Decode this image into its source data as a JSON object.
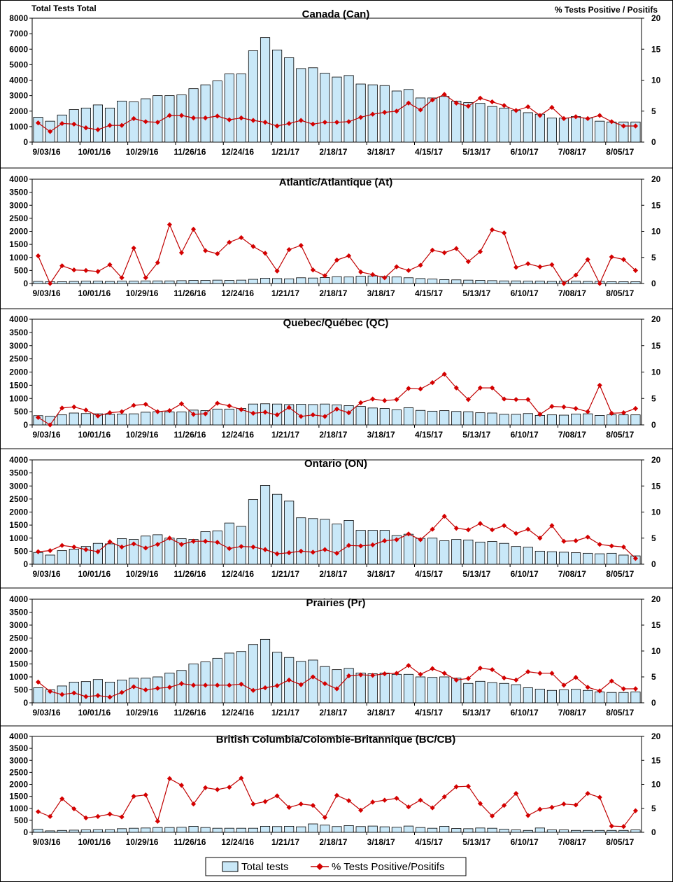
{
  "header": {
    "left_axis_title": "Total Tests Total",
    "right_axis_title": "% Tests Positive / Positifs"
  },
  "legend": {
    "bars_label": "Total tests",
    "line_label": "% Tests Positive/Positifs"
  },
  "colors": {
    "bar_fill": "#c9e8f8",
    "bar_stroke": "#000000",
    "line": "#c00000",
    "marker": "#d40000"
  },
  "chart_data": [
    {
      "type": "bar",
      "title": "Canada (Can)",
      "x_tick_labels": [
        "9/03/16",
        "10/01/16",
        "10/29/16",
        "11/26/16",
        "12/24/16",
        "1/21/17",
        "2/18/17",
        "3/18/17",
        "4/15/17",
        "5/13/17",
        "6/10/17",
        "7/08/17",
        "8/05/17"
      ],
      "left_ylim": [
        0,
        8000
      ],
      "left_yticks": [
        "0",
        "1000",
        "2000",
        "3000",
        "4000",
        "5000",
        "6000",
        "7000",
        "8000"
      ],
      "right_ylim": [
        0,
        20
      ],
      "right_yticks": [
        "0",
        "5",
        "10",
        "15",
        "20"
      ],
      "series": [
        {
          "name": "Total tests",
          "axis": "left",
          "values": [
            1600,
            1350,
            1750,
            2100,
            2200,
            2400,
            2200,
            2650,
            2600,
            2800,
            3000,
            3000,
            3050,
            3450,
            3700,
            3950,
            4400,
            4400,
            5900,
            6750,
            5950,
            5450,
            4750,
            4800,
            4450,
            4200,
            4300,
            3750,
            3700,
            3650,
            3300,
            3400,
            2850,
            2850,
            2950,
            2650,
            2550,
            2500,
            2300,
            2200,
            2050,
            1900,
            1800,
            1550,
            1550,
            1650,
            1550,
            1350,
            1300,
            1300,
            1300
          ]
        },
        {
          "name": "% Tests Positive/Positifs",
          "axis": "right",
          "values": [
            3.1,
            1.7,
            3.0,
            2.9,
            2.3,
            2.0,
            2.7,
            2.7,
            3.8,
            3.3,
            3.2,
            4.3,
            4.3,
            3.9,
            3.9,
            4.2,
            3.6,
            3.9,
            3.5,
            3.2,
            2.6,
            3.0,
            3.5,
            2.9,
            3.2,
            3.2,
            3.3,
            4.0,
            4.5,
            4.8,
            5.0,
            6.3,
            5.2,
            6.8,
            7.7,
            6.3,
            5.8,
            7.1,
            6.5,
            5.9,
            5.1,
            5.7,
            4.3,
            5.6,
            3.8,
            4.1,
            3.8,
            4.3,
            3.3,
            2.6,
            2.6
          ]
        }
      ]
    },
    {
      "type": "bar",
      "title": "Atlantic/Atlantique  (At)",
      "x_tick_labels": [
        "9/03/16",
        "10/01/16",
        "10/29/16",
        "11/26/16",
        "12/24/16",
        "1/21/17",
        "2/18/17",
        "3/18/17",
        "4/15/17",
        "5/13/17",
        "6/10/17",
        "7/08/17",
        "8/05/17"
      ],
      "left_ylim": [
        0,
        4000
      ],
      "left_yticks": [
        "0",
        "500",
        "1000",
        "1500",
        "2000",
        "2500",
        "3000",
        "3500",
        "4000"
      ],
      "right_ylim": [
        0,
        20
      ],
      "right_yticks": [
        "0",
        "5",
        "10",
        "15",
        "20"
      ],
      "series": [
        {
          "name": "Total tests",
          "axis": "left",
          "values": [
            80,
            70,
            70,
            80,
            90,
            90,
            80,
            90,
            90,
            100,
            100,
            100,
            110,
            120,
            120,
            130,
            120,
            130,
            160,
            200,
            190,
            180,
            220,
            210,
            230,
            260,
            250,
            280,
            290,
            270,
            250,
            220,
            190,
            170,
            150,
            140,
            130,
            120,
            110,
            100,
            100,
            90,
            90,
            80,
            90,
            90,
            80,
            80,
            70,
            70,
            70
          ]
        },
        {
          "name": "% Tests Positive/Positifs",
          "axis": "right",
          "values": [
            5.3,
            0,
            3.4,
            2.6,
            2.5,
            2.3,
            3.6,
            1.1,
            6.8,
            1.1,
            4.0,
            11.3,
            5.9,
            10.4,
            6.3,
            5.7,
            7.9,
            8.8,
            7.1,
            5.8,
            2.4,
            6.5,
            7.3,
            2.6,
            1.5,
            4.5,
            5.3,
            2.2,
            1.7,
            1.1,
            3.2,
            2.5,
            3.5,
            6.4,
            5.9,
            6.7,
            4.2,
            6.1,
            10.3,
            9.7,
            3.1,
            3.8,
            3.2,
            3.6,
            0,
            1.6,
            4.6,
            0,
            5.1,
            4.6,
            2.5
          ]
        }
      ]
    },
    {
      "type": "bar",
      "title": "Quebec/Québec (QC)",
      "x_tick_labels": [
        "9/03/16",
        "10/01/16",
        "10/29/16",
        "11/26/16",
        "12/24/16",
        "1/21/17",
        "2/18/17",
        "3/18/17",
        "4/15/17",
        "5/13/17",
        "6/10/17",
        "7/08/17",
        "8/05/17"
      ],
      "left_ylim": [
        0,
        4000
      ],
      "left_yticks": [
        "0",
        "500",
        "1000",
        "1500",
        "2000",
        "2500",
        "3000",
        "3500",
        "4000"
      ],
      "right_ylim": [
        0,
        20
      ],
      "right_yticks": [
        "0",
        "5",
        "10",
        "15",
        "20"
      ],
      "series": [
        {
          "name": "Total tests",
          "axis": "left",
          "values": [
            350,
            330,
            380,
            450,
            430,
            420,
            400,
            410,
            420,
            480,
            500,
            490,
            490,
            560,
            540,
            600,
            600,
            620,
            790,
            800,
            790,
            770,
            780,
            770,
            790,
            760,
            730,
            700,
            640,
            620,
            570,
            650,
            550,
            520,
            540,
            510,
            500,
            460,
            450,
            400,
            400,
            430,
            360,
            380,
            370,
            410,
            420,
            360,
            380,
            380,
            380
          ]
        },
        {
          "name": "% Tests Positive/Positifs",
          "axis": "right",
          "values": [
            1.4,
            0,
            3.2,
            3.4,
            2.8,
            1.7,
            2.3,
            2.5,
            3.7,
            3.9,
            2.5,
            2.7,
            4.0,
            2.0,
            2.1,
            4.1,
            3.6,
            2.9,
            2.2,
            2.4,
            1.9,
            3.3,
            1.6,
            1.9,
            1.6,
            3.0,
            2.3,
            4.2,
            4.9,
            4.6,
            4.8,
            6.9,
            6.8,
            8.0,
            9.6,
            7.0,
            4.8,
            7.0,
            7.0,
            4.9,
            4.8,
            4.8,
            2.0,
            3.5,
            3.4,
            3.1,
            2.5,
            7.5,
            2.2,
            2.3,
            3.1
          ]
        }
      ]
    },
    {
      "type": "bar",
      "title": "Ontario (ON)",
      "x_tick_labels": [
        "9/03/16",
        "10/01/16",
        "10/29/16",
        "11/26/16",
        "12/24/16",
        "1/21/17",
        "2/18/17",
        "3/18/17",
        "4/15/17",
        "5/13/17",
        "6/10/17",
        "7/08/17",
        "8/05/17"
      ],
      "left_ylim": [
        0,
        4000
      ],
      "left_yticks": [
        "0",
        "500",
        "1000",
        "1500",
        "2000",
        "2500",
        "3000",
        "3500",
        "4000"
      ],
      "right_ylim": [
        0,
        20
      ],
      "right_yticks": [
        "0",
        "5",
        "10",
        "15",
        "20"
      ],
      "series": [
        {
          "name": "Total tests",
          "axis": "left",
          "values": [
            450,
            350,
            520,
            580,
            680,
            800,
            780,
            980,
            950,
            1080,
            1130,
            1000,
            980,
            950,
            1250,
            1280,
            1580,
            1450,
            2480,
            3020,
            2680,
            2420,
            1780,
            1750,
            1720,
            1540,
            1680,
            1300,
            1300,
            1300,
            1100,
            1150,
            990,
            1000,
            900,
            950,
            930,
            850,
            870,
            800,
            680,
            650,
            500,
            480,
            460,
            440,
            420,
            400,
            420,
            350,
            320
          ]
        },
        {
          "name": "% Tests Positive/Positifs",
          "axis": "right",
          "values": [
            2.4,
            2.6,
            3.6,
            3.3,
            2.8,
            2.4,
            4.3,
            3.3,
            3.9,
            3.1,
            3.8,
            5.0,
            3.8,
            4.4,
            4.4,
            4.2,
            3.0,
            3.4,
            3.3,
            2.8,
            2.0,
            2.2,
            2.5,
            2.3,
            2.8,
            2.1,
            3.6,
            3.5,
            3.7,
            4.5,
            4.7,
            5.8,
            4.7,
            6.7,
            9.2,
            6.9,
            6.6,
            7.8,
            6.6,
            7.4,
            5.9,
            6.7,
            5.0,
            7.4,
            4.4,
            4.5,
            5.2,
            3.8,
            3.5,
            3.3,
            1.1
          ]
        }
      ]
    },
    {
      "type": "bar",
      "title": "Prairies (Pr)",
      "x_tick_labels": [
        "9/03/16",
        "10/01/16",
        "10/29/16",
        "11/26/16",
        "12/24/16",
        "1/21/17",
        "2/18/17",
        "3/18/17",
        "4/15/17",
        "5/13/17",
        "6/10/17",
        "7/08/17",
        "8/05/17"
      ],
      "left_ylim": [
        0,
        4000
      ],
      "left_yticks": [
        "0",
        "500",
        "1000",
        "1500",
        "2000",
        "2500",
        "3000",
        "3500",
        "4000"
      ],
      "right_ylim": [
        0,
        20
      ],
      "right_yticks": [
        "0",
        "5",
        "10",
        "15",
        "20"
      ],
      "series": [
        {
          "name": "Total tests",
          "axis": "left",
          "values": [
            580,
            500,
            650,
            800,
            820,
            900,
            800,
            880,
            950,
            950,
            1000,
            1150,
            1250,
            1500,
            1580,
            1720,
            1920,
            1980,
            2250,
            2450,
            1950,
            1750,
            1600,
            1650,
            1400,
            1280,
            1330,
            1150,
            1120,
            1150,
            1100,
            1100,
            1000,
            980,
            1000,
            950,
            750,
            830,
            780,
            750,
            700,
            580,
            530,
            480,
            500,
            520,
            480,
            420,
            400,
            400,
            420
          ]
        },
        {
          "name": "% Tests Positive/Positifs",
          "axis": "right",
          "values": [
            4.0,
            2.2,
            1.6,
            1.9,
            1.2,
            1.4,
            1.1,
            2.0,
            3.1,
            2.5,
            2.8,
            3.0,
            3.7,
            3.4,
            3.4,
            3.4,
            3.4,
            3.6,
            2.4,
            2.9,
            3.3,
            4.4,
            3.5,
            5.0,
            3.7,
            2.7,
            5.2,
            5.4,
            5.3,
            5.6,
            5.7,
            7.2,
            5.5,
            6.6,
            5.7,
            4.4,
            4.7,
            6.7,
            6.4,
            4.8,
            4.4,
            6.0,
            5.7,
            5.7,
            3.4,
            4.9,
            3.0,
            2.3,
            4.2,
            2.7,
            2.7
          ]
        }
      ]
    },
    {
      "type": "bar",
      "title": "British Columbia/Colombie-Britannique (BC/CB)",
      "x_tick_labels": [
        "9/03/16",
        "10/01/16",
        "10/29/16",
        "11/26/16",
        "12/24/16",
        "1/21/17",
        "2/18/17",
        "3/18/17",
        "4/15/17",
        "5/13/17",
        "6/10/17",
        "7/08/17",
        "8/05/17"
      ],
      "left_ylim": [
        0,
        4000
      ],
      "left_yticks": [
        "0",
        "500",
        "1000",
        "1500",
        "2000",
        "2500",
        "3000",
        "3500",
        "4000"
      ],
      "right_ylim": [
        0,
        20
      ],
      "right_yticks": [
        "0",
        "5",
        "10",
        "15",
        "20"
      ],
      "series": [
        {
          "name": "Total tests",
          "axis": "left",
          "values": [
            130,
            60,
            80,
            90,
            100,
            110,
            110,
            150,
            170,
            180,
            200,
            200,
            210,
            250,
            200,
            170,
            170,
            170,
            170,
            250,
            240,
            250,
            230,
            350,
            300,
            240,
            280,
            240,
            260,
            230,
            210,
            260,
            200,
            170,
            250,
            160,
            150,
            180,
            170,
            130,
            100,
            80,
            180,
            100,
            100,
            80,
            80,
            80,
            80,
            80,
            100
          ]
        },
        {
          "name": "% Tests Positive/Positifs",
          "axis": "right",
          "values": [
            4.3,
            3.3,
            7.0,
            4.9,
            3.0,
            3.3,
            3.8,
            3.2,
            7.5,
            7.8,
            2.3,
            11.2,
            9.8,
            5.9,
            9.3,
            8.9,
            9.4,
            11.3,
            5.9,
            6.4,
            7.6,
            5.2,
            5.9,
            5.6,
            3.1,
            7.7,
            6.6,
            4.6,
            6.3,
            6.7,
            7.1,
            5.3,
            6.7,
            5.1,
            7.4,
            9.5,
            9.6,
            6.0,
            3.4,
            5.6,
            8.1,
            3.5,
            4.8,
            5.2,
            5.9,
            5.7,
            8.1,
            7.3,
            1.3,
            1.2,
            4.5
          ]
        }
      ]
    }
  ]
}
